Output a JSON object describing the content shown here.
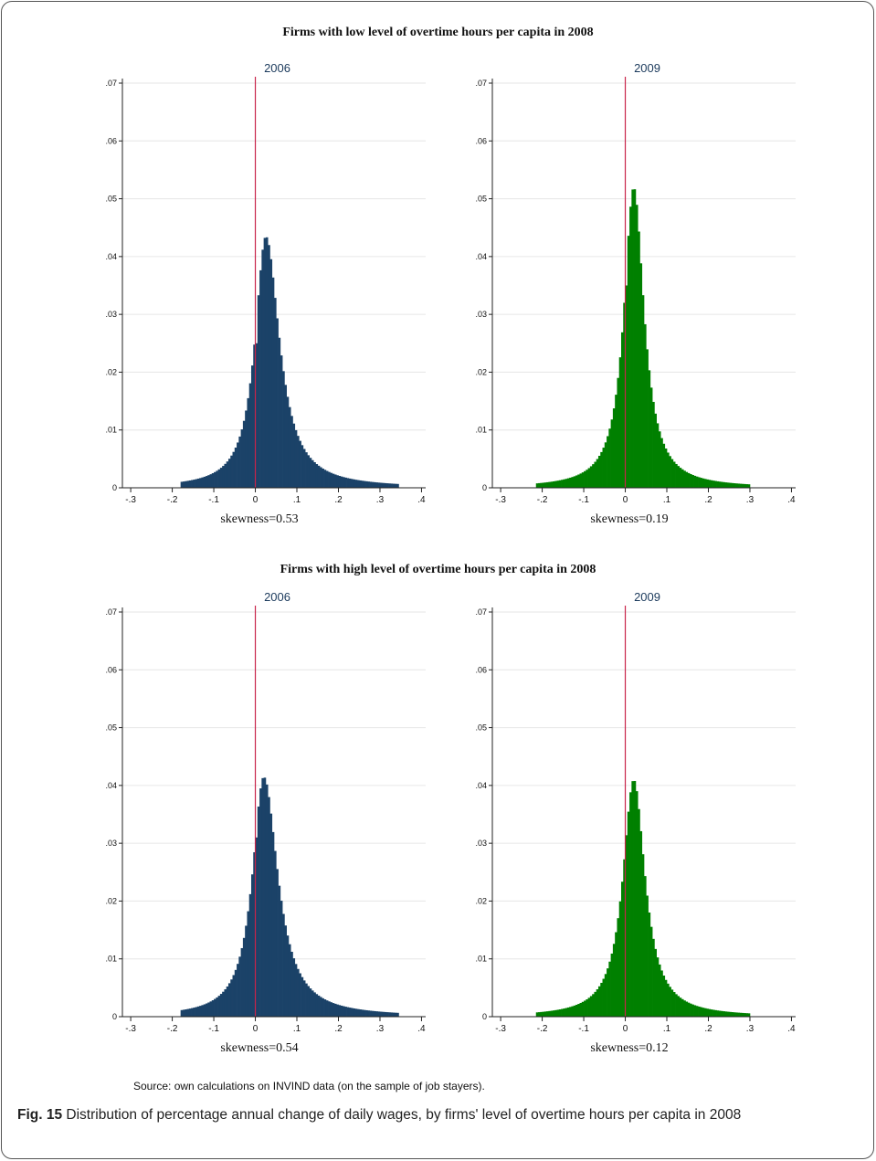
{
  "figure": {
    "panel_titles": {
      "top": "Firms with low level of overtime hours per capita in 2008",
      "bottom": "Firms with high level of overtime hours per capita in 2008"
    },
    "source_note": "Source: own calculations on INVIND data (on the sample of job stayers).",
    "caption_label": "Fig. 15",
    "caption_text": "Distribution of percentage annual change of daily wages, by firms' level of overtime hours per capita in 2008"
  },
  "colors": {
    "blue": "#1b4268",
    "green": "#008000",
    "refline": "#c8244a",
    "grid": "#e6e6e6",
    "title": "#1b3a5c"
  },
  "chart_data": [
    {
      "type": "histogram",
      "title": "2006",
      "xlabel": "skewness=0.53",
      "color": "#1b4268",
      "xlim": [
        -0.32,
        0.41
      ],
      "ylim": [
        0,
        0.07
      ],
      "xticks": [
        -0.3,
        -0.2,
        -0.1,
        0,
        0.1,
        0.2,
        0.3,
        0.4
      ],
      "xtick_labels": [
        "-.3",
        "-.2",
        "-.1",
        "0",
        ".1",
        ".2",
        ".3",
        ".4"
      ],
      "yticks": [
        0,
        0.01,
        0.02,
        0.03,
        0.04,
        0.05,
        0.06,
        0.07
      ],
      "ytick_labels": [
        "0",
        ".01",
        ".02",
        ".03",
        ".04",
        ".05",
        ".06",
        ".07"
      ],
      "reference_line_x": 0,
      "bin_range": [
        -0.18,
        0.345
      ],
      "peak_x": 0.025,
      "peak_y": 0.0435,
      "zero_bin_y": 0.025,
      "left_spread": 0.04,
      "right_spread": 0.05,
      "grid": true
    },
    {
      "type": "histogram",
      "title": "2009",
      "xlabel": "skewness=0.19",
      "color": "#008000",
      "xlim": [
        -0.32,
        0.41
      ],
      "ylim": [
        0,
        0.07
      ],
      "xticks": [
        -0.3,
        -0.2,
        -0.1,
        0,
        0.1,
        0.2,
        0.3,
        0.4
      ],
      "xtick_labels": [
        "-.3",
        "-.2",
        "-.1",
        "0",
        ".1",
        ".2",
        ".3",
        ".4"
      ],
      "yticks": [
        0,
        0.01,
        0.02,
        0.03,
        0.04,
        0.05,
        0.06,
        0.07
      ],
      "ytick_labels": [
        "0",
        ".01",
        ".02",
        ".03",
        ".04",
        ".05",
        ".06",
        ".07"
      ],
      "reference_line_x": 0,
      "bin_range": [
        -0.215,
        0.3
      ],
      "peak_x": 0.02,
      "peak_y": 0.052,
      "zero_bin_y": 0.035,
      "left_spread": 0.036,
      "right_spread": 0.038,
      "grid": true
    },
    {
      "type": "histogram",
      "title": "2006",
      "xlabel": "skewness=0.54",
      "color": "#1b4268",
      "xlim": [
        -0.32,
        0.41
      ],
      "ylim": [
        0,
        0.07
      ],
      "xticks": [
        -0.3,
        -0.2,
        -0.1,
        0,
        0.1,
        0.2,
        0.3,
        0.4
      ],
      "xtick_labels": [
        "-.3",
        "-.2",
        "-.1",
        "0",
        ".1",
        ".2",
        ".3",
        ".4"
      ],
      "yticks": [
        0,
        0.01,
        0.02,
        0.03,
        0.04,
        0.05,
        0.06,
        0.07
      ],
      "ytick_labels": [
        "0",
        ".01",
        ".02",
        ".03",
        ".04",
        ".05",
        ".06",
        ".07"
      ],
      "reference_line_x": 0,
      "bin_range": [
        -0.18,
        0.345
      ],
      "peak_x": 0.02,
      "peak_y": 0.0415,
      "zero_bin_y": 0.031,
      "left_spread": 0.042,
      "right_spread": 0.052,
      "grid": true
    },
    {
      "type": "histogram",
      "title": "2009",
      "xlabel": "skewness=0.12",
      "color": "#008000",
      "xlim": [
        -0.32,
        0.41
      ],
      "ylim": [
        0,
        0.07
      ],
      "xticks": [
        -0.3,
        -0.2,
        -0.1,
        0,
        0.1,
        0.2,
        0.3,
        0.4
      ],
      "xtick_labels": [
        "-.3",
        "-.2",
        "-.1",
        "0",
        ".1",
        ".2",
        ".3",
        ".4"
      ],
      "yticks": [
        0,
        0.01,
        0.02,
        0.03,
        0.04,
        0.05,
        0.06,
        0.07
      ],
      "ytick_labels": [
        "0",
        ".01",
        ".02",
        ".03",
        ".04",
        ".05",
        ".06",
        ".07"
      ],
      "reference_line_x": 0,
      "bin_range": [
        -0.215,
        0.3
      ],
      "peak_x": 0.02,
      "peak_y": 0.041,
      "zero_bin_y": 0.033,
      "left_spread": 0.04,
      "right_spread": 0.042,
      "grid": true
    }
  ]
}
